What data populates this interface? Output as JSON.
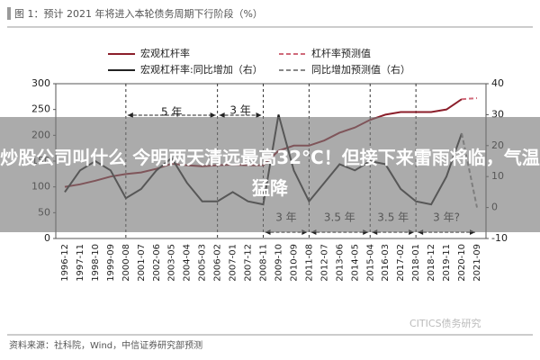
{
  "chart_data": {
    "type": "line",
    "title": "图 1：预计 2021 年将进入本轮债务周期下行阶段（%）",
    "categories": [
      "1996-12",
      "1997-11",
      "1998-10",
      "1999-09",
      "2000-08",
      "2001-07",
      "2002-06",
      "2003-05",
      "2004-04",
      "2005-03",
      "2006-02",
      "2007-01",
      "2007-12",
      "2008-11",
      "2009-10",
      "2010-09",
      "2011-08",
      "2012-07",
      "2013-06",
      "2014-05",
      "2015-04",
      "2016-03",
      "2017-02",
      "2018-01",
      "2018-12",
      "2019-11",
      "2020-10",
      "2021-09"
    ],
    "series": [
      {
        "name": "宏观杠杆率",
        "color": "#8b1e2a",
        "dashed": false,
        "values": [
          100,
          105,
          112,
          120,
          125,
          128,
          135,
          145,
          142,
          140,
          142,
          143,
          142,
          142,
          170,
          180,
          180,
          190,
          205,
          215,
          230,
          240,
          245,
          245,
          245,
          250,
          270,
          null
        ]
      },
      {
        "name": "杠杆率预测值",
        "color": "#d06a7a",
        "dashed": true,
        "values": [
          null,
          null,
          null,
          null,
          null,
          null,
          null,
          null,
          null,
          null,
          null,
          null,
          null,
          null,
          null,
          null,
          null,
          null,
          null,
          null,
          null,
          null,
          null,
          null,
          null,
          null,
          270,
          272
        ]
      },
      {
        "name": "宏观杠杆率:同比增加（右）",
        "color": "#222222",
        "dashed": false,
        "axis": "y2",
        "values": [
          5,
          12,
          15,
          12,
          3,
          6,
          12,
          16,
          8,
          2,
          2,
          5,
          2,
          1,
          30,
          12,
          2,
          8,
          14,
          12,
          15,
          14,
          6,
          2,
          1,
          10,
          24,
          null
        ]
      },
      {
        "name": "同比增加预测值（右）",
        "color": "#888888",
        "dashed": true,
        "axis": "y2",
        "values": [
          null,
          null,
          null,
          null,
          null,
          null,
          null,
          null,
          null,
          null,
          null,
          null,
          null,
          null,
          null,
          null,
          null,
          null,
          null,
          null,
          null,
          null,
          null,
          null,
          null,
          null,
          24,
          0
        ]
      }
    ],
    "ylim": [
      0,
      300
    ],
    "yticks": [
      0,
      50,
      100,
      150,
      200,
      250,
      300
    ],
    "y2lim": [
      -10,
      40
    ],
    "y2ticks": [
      -10,
      0,
      10,
      20,
      30,
      40
    ],
    "annotations": [
      "5 年",
      "3 年",
      "3 年",
      "3.5 年",
      "3.5 年",
      "3 年?"
    ],
    "source": "资料来源：社科院，Wind，中信证券研究部预测",
    "watermark": "CITICS债务研究",
    "banner": "炒股公司叫什么 今明两天清远最高32°C！但接下来雷雨将临，气温猛降"
  }
}
